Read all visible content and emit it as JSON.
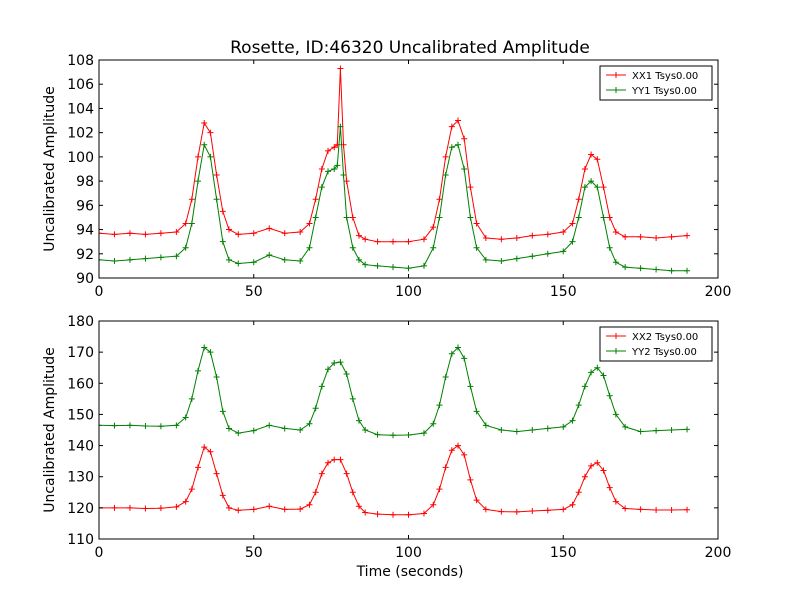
{
  "chart_data": [
    {
      "type": "line",
      "title": "Rosette, ID:46320 Uncalibrated Amplitude",
      "xlabel": "",
      "ylabel": "Uncalibrated Amplitude",
      "xlim": [
        0,
        200
      ],
      "ylim": [
        90,
        108
      ],
      "xticks": [
        0,
        50,
        100,
        150,
        200
      ],
      "yticks": [
        90,
        92,
        94,
        96,
        98,
        100,
        102,
        104,
        106,
        108
      ],
      "grid": false,
      "legend_position": "top-right",
      "marker": "+",
      "series": [
        {
          "name": "XX1 Tsys0.00",
          "color": "#ff0000",
          "x": [
            0,
            5,
            10,
            15,
            20,
            25,
            28,
            30,
            32,
            34,
            36,
            38,
            40,
            42,
            45,
            50,
            55,
            60,
            65,
            68,
            70,
            72,
            74,
            76,
            77,
            78,
            79,
            80,
            82,
            84,
            86,
            90,
            95,
            100,
            105,
            108,
            110,
            112,
            114,
            116,
            118,
            120,
            122,
            125,
            130,
            135,
            140,
            145,
            150,
            153,
            155,
            157,
            159,
            161,
            163,
            165,
            167,
            170,
            175,
            180,
            185,
            190
          ],
          "y": [
            93.7,
            93.6,
            93.7,
            93.6,
            93.7,
            93.8,
            94.5,
            96.5,
            100.0,
            102.8,
            102.0,
            98.5,
            95.5,
            94.0,
            93.6,
            93.7,
            94.1,
            93.7,
            93.8,
            94.5,
            96.5,
            99.0,
            100.5,
            100.8,
            101.0,
            107.3,
            101.0,
            98.0,
            95.0,
            93.5,
            93.2,
            93.0,
            93.0,
            93.0,
            93.2,
            94.2,
            96.5,
            100.0,
            102.5,
            103.0,
            101.5,
            97.5,
            94.5,
            93.3,
            93.2,
            93.3,
            93.5,
            93.6,
            93.8,
            94.5,
            96.5,
            99.0,
            100.2,
            99.8,
            97.5,
            95.0,
            93.8,
            93.4,
            93.4,
            93.3,
            93.4,
            93.5
          ]
        },
        {
          "name": "YY1 Tsys0.00",
          "color": "#008000",
          "x": [
            0,
            5,
            10,
            15,
            20,
            25,
            28,
            30,
            32,
            34,
            36,
            38,
            40,
            42,
            45,
            50,
            55,
            60,
            65,
            68,
            70,
            72,
            74,
            76,
            77,
            78,
            79,
            80,
            82,
            84,
            86,
            90,
            95,
            100,
            105,
            108,
            110,
            112,
            114,
            116,
            118,
            120,
            122,
            125,
            130,
            135,
            140,
            145,
            150,
            153,
            155,
            157,
            159,
            161,
            163,
            165,
            167,
            170,
            175,
            180,
            185,
            190
          ],
          "y": [
            91.5,
            91.4,
            91.5,
            91.6,
            91.7,
            91.8,
            92.5,
            94.5,
            98.0,
            101.0,
            100.0,
            96.5,
            93.0,
            91.5,
            91.2,
            91.3,
            91.9,
            91.5,
            91.4,
            92.5,
            95.0,
            97.5,
            98.8,
            99.0,
            99.3,
            102.5,
            98.5,
            95.0,
            92.5,
            91.5,
            91.1,
            91.0,
            90.9,
            90.8,
            91.0,
            92.5,
            95.0,
            98.5,
            100.8,
            101.0,
            99.0,
            95.0,
            92.5,
            91.5,
            91.4,
            91.6,
            91.8,
            92.0,
            92.2,
            93.0,
            95.0,
            97.5,
            98.0,
            97.5,
            95.0,
            92.5,
            91.3,
            90.9,
            90.8,
            90.7,
            90.6,
            90.6
          ]
        }
      ]
    },
    {
      "type": "line",
      "title": "",
      "xlabel": "Time (seconds)",
      "ylabel": "Uncalibrated Amplitude",
      "xlim": [
        0,
        200
      ],
      "ylim": [
        110,
        180
      ],
      "xticks": [
        0,
        50,
        100,
        150,
        200
      ],
      "yticks": [
        110,
        120,
        130,
        140,
        150,
        160,
        170,
        180
      ],
      "grid": false,
      "legend_position": "top-right",
      "marker": "+",
      "series": [
        {
          "name": "XX2 Tsys0.00",
          "color": "#ff0000",
          "x": [
            0,
            5,
            10,
            15,
            20,
            25,
            28,
            30,
            32,
            34,
            36,
            38,
            40,
            42,
            45,
            50,
            55,
            60,
            65,
            68,
            70,
            72,
            74,
            76,
            78,
            80,
            82,
            84,
            86,
            90,
            95,
            100,
            105,
            108,
            110,
            112,
            114,
            116,
            118,
            120,
            122,
            125,
            130,
            135,
            140,
            145,
            150,
            153,
            155,
            157,
            159,
            161,
            163,
            165,
            167,
            170,
            175,
            180,
            185,
            190
          ],
          "y": [
            120.0,
            120.0,
            120.0,
            119.8,
            119.9,
            120.3,
            122.0,
            126.0,
            133.0,
            139.5,
            138.0,
            131.0,
            124.0,
            120.0,
            119.2,
            119.5,
            120.5,
            119.5,
            119.6,
            121.0,
            125.0,
            131.0,
            134.5,
            135.5,
            135.5,
            131.0,
            125.0,
            120.5,
            118.5,
            118.0,
            117.8,
            117.8,
            118.2,
            121.0,
            126.0,
            133.0,
            138.5,
            140.0,
            137.0,
            129.0,
            122.5,
            119.5,
            118.8,
            118.7,
            119.0,
            119.2,
            119.5,
            121.0,
            125.0,
            130.0,
            133.5,
            134.5,
            132.0,
            126.5,
            122.0,
            119.8,
            119.5,
            119.3,
            119.3,
            119.4
          ]
        },
        {
          "name": "YY2 Tsys0.00",
          "color": "#008000",
          "x": [
            0,
            5,
            10,
            15,
            20,
            25,
            28,
            30,
            32,
            34,
            36,
            38,
            40,
            42,
            45,
            50,
            55,
            60,
            65,
            68,
            70,
            72,
            74,
            76,
            78,
            80,
            82,
            84,
            86,
            90,
            95,
            100,
            105,
            108,
            110,
            112,
            114,
            116,
            118,
            120,
            122,
            125,
            130,
            135,
            140,
            145,
            150,
            153,
            155,
            157,
            159,
            161,
            163,
            165,
            167,
            170,
            175,
            180,
            185,
            190
          ],
          "y": [
            146.5,
            146.4,
            146.5,
            146.3,
            146.2,
            146.5,
            149.0,
            155.0,
            164.0,
            171.5,
            170.0,
            162.0,
            151.0,
            145.5,
            144.0,
            144.8,
            146.5,
            145.5,
            145.0,
            147.0,
            152.0,
            159.0,
            164.5,
            166.5,
            166.8,
            163.0,
            155.0,
            148.0,
            145.0,
            143.5,
            143.3,
            143.4,
            144.0,
            147.0,
            153.0,
            162.0,
            169.5,
            171.5,
            168.0,
            159.0,
            151.0,
            146.5,
            145.0,
            144.5,
            145.0,
            145.5,
            146.0,
            148.0,
            153.0,
            159.0,
            163.5,
            165.0,
            162.5,
            156.0,
            150.0,
            146.0,
            144.5,
            144.8,
            145.0,
            145.2
          ]
        }
      ]
    }
  ]
}
